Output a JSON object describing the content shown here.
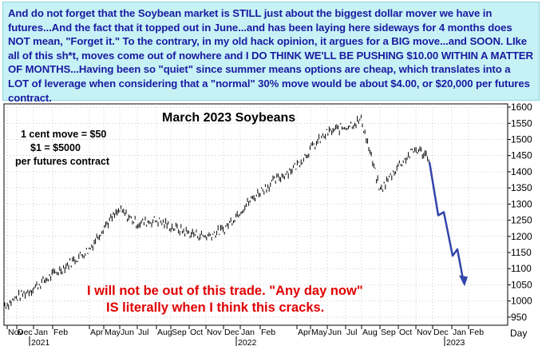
{
  "commentary": "And do not forget that the Soybean market is STILL just about the biggest dollar mover we have in futures...And the fact that it topped out in June...and has been laying here sideways for 4 months does NOT mean, \"Forget it.\" To the contrary, in my old hack opinion, it argues for a BIG move...and SOON. LIke all of this sh*t, moves come out of nowhere and I DO THINK WE'LL BE PUSHING $10.00 WITHIN A MATTER OF MONTHS...Having been so \"quiet\" since summer means options are cheap, which translates into a LOT of leverage when considering that a \"normal\" 30% move would be about $4.00, or $20,000 per futures contract.",
  "chart_data": {
    "type": "line",
    "title": "March 2023 Soybeans",
    "xlabel": "",
    "ylabel": "",
    "ylim": [
      925,
      1610
    ],
    "y_ticks": [
      1600,
      1550,
      1500,
      1450,
      1400,
      1350,
      1300,
      1250,
      1200,
      1150,
      1100,
      1050,
      1000,
      950
    ],
    "y_unit_label": "Day",
    "x_tick_labels": [
      "Nov",
      "Dec",
      "Jan",
      "Feb",
      "Apr",
      "May",
      "Jun",
      "Jul",
      "Aug",
      "Sep",
      "Oct",
      "Nov",
      "Dec",
      "Jan",
      "Feb",
      "Apr",
      "May",
      "Jun",
      "Jul",
      "Aug",
      "Sep",
      "Oct",
      "Nov",
      "Dec",
      "Jan",
      "Feb"
    ],
    "year_labels": [
      "2021",
      "2022",
      "2023"
    ],
    "side_notes": [
      "1 cent move = $50",
      "$1 = $5000",
      "per futures contract"
    ],
    "annotations": [
      "I will not be out of this trade. \"Any day now\"",
      "IS literally when I think this cracks."
    ],
    "series": [
      {
        "x": [
          "2020-11",
          "2020-12",
          "2021-01",
          "2021-02",
          "2021-03",
          "2021-04",
          "2021-05",
          "2021-06",
          "2021-07",
          "2021-08",
          "2021-09",
          "2021-10",
          "2021-11",
          "2021-12",
          "2022-01",
          "2022-02",
          "2022-03",
          "2022-04",
          "2022-05",
          "2022-06",
          "2022-07",
          "2022-08",
          "2022-09",
          "2022-10",
          "2022-11",
          "2022-12"
        ],
        "values": [
          990,
          1010,
          1040,
          1080,
          1160,
          1230,
          1280,
          1240,
          1250,
          1230,
          1210,
          1200,
          1220,
          1280,
          1340,
          1420,
          1470,
          1520,
          1540,
          1560,
          1340,
          1420,
          1470,
          1440,
          1450,
          1460
        ]
      },
      {
        "x": [
          "2022-12",
          "2023-01",
          "2023-01",
          "2023-02"
        ],
        "values": [
          1430,
          1250,
          1150,
          1050
        ]
      }
    ]
  }
}
